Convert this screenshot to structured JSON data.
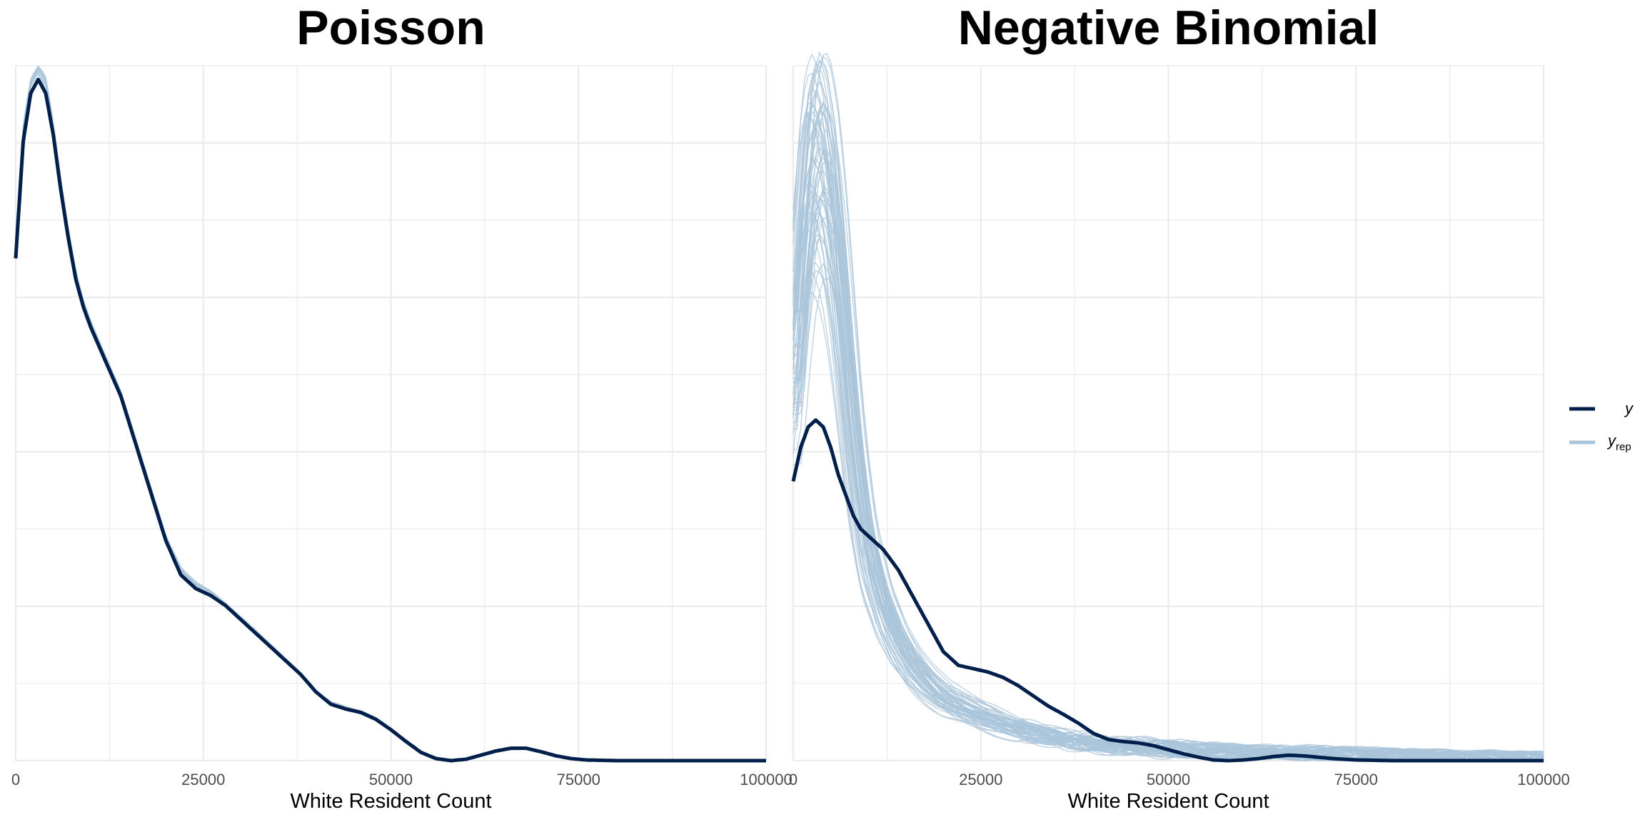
{
  "chart_data": [
    {
      "type": "line",
      "title": "Poisson",
      "xlabel": "White Resident Count",
      "ylabel": "",
      "xlim": [
        0,
        100000
      ],
      "x_ticks": [
        "0",
        "25000",
        "50000",
        "75000",
        "100000"
      ],
      "y_ticks_visible": false,
      "grid": true,
      "series": [
        {
          "name": "y",
          "color": "#011f4b",
          "points": [
            [
              0,
              0.73
            ],
            [
              1000,
              0.9
            ],
            [
              2000,
              0.97
            ],
            [
              3000,
              0.99
            ],
            [
              4000,
              0.97
            ],
            [
              5000,
              0.91
            ],
            [
              6000,
              0.83
            ],
            [
              7000,
              0.76
            ],
            [
              8000,
              0.7
            ],
            [
              9000,
              0.66
            ],
            [
              10000,
              0.63
            ],
            [
              12000,
              0.58
            ],
            [
              14000,
              0.53
            ],
            [
              16000,
              0.46
            ],
            [
              18000,
              0.39
            ],
            [
              20000,
              0.32
            ],
            [
              22000,
              0.27
            ],
            [
              24000,
              0.25
            ],
            [
              26000,
              0.24
            ],
            [
              28000,
              0.225
            ],
            [
              30000,
              0.205
            ],
            [
              32000,
              0.185
            ],
            [
              34000,
              0.165
            ],
            [
              36000,
              0.145
            ],
            [
              38000,
              0.125
            ],
            [
              40000,
              0.1
            ],
            [
              42000,
              0.082
            ],
            [
              44000,
              0.075
            ],
            [
              46000,
              0.07
            ],
            [
              48000,
              0.06
            ],
            [
              50000,
              0.045
            ],
            [
              52000,
              0.028
            ],
            [
              54000,
              0.012
            ],
            [
              56000,
              0.003
            ],
            [
              58000,
              0.0
            ],
            [
              60000,
              0.002
            ],
            [
              62000,
              0.008
            ],
            [
              64000,
              0.014
            ],
            [
              66000,
              0.018
            ],
            [
              68000,
              0.018
            ],
            [
              70000,
              0.013
            ],
            [
              72000,
              0.007
            ],
            [
              74000,
              0.003
            ],
            [
              76000,
              0.001
            ],
            [
              80000,
              0.0
            ],
            [
              100000,
              0.0
            ]
          ]
        },
        {
          "name": "yrep",
          "color": "#a9c4da",
          "points": [
            [
              0,
              0.74
            ],
            [
              1000,
              0.91
            ],
            [
              2000,
              0.98
            ],
            [
              3000,
              1.0
            ],
            [
              4000,
              0.98
            ],
            [
              5000,
              0.91
            ],
            [
              6000,
              0.83
            ],
            [
              7000,
              0.76
            ],
            [
              8000,
              0.7
            ],
            [
              9000,
              0.66
            ],
            [
              10000,
              0.63
            ],
            [
              12000,
              0.58
            ],
            [
              14000,
              0.53
            ],
            [
              16000,
              0.46
            ],
            [
              18000,
              0.39
            ],
            [
              20000,
              0.32
            ],
            [
              22000,
              0.275
            ],
            [
              24000,
              0.255
            ],
            [
              26000,
              0.243
            ],
            [
              28000,
              0.225
            ],
            [
              30000,
              0.205
            ],
            [
              32000,
              0.185
            ],
            [
              34000,
              0.165
            ],
            [
              36000,
              0.145
            ],
            [
              38000,
              0.125
            ],
            [
              40000,
              0.1
            ],
            [
              42000,
              0.083
            ],
            [
              44000,
              0.076
            ],
            [
              46000,
              0.07
            ],
            [
              48000,
              0.06
            ],
            [
              50000,
              0.045
            ],
            [
              52000,
              0.028
            ],
            [
              54000,
              0.012
            ],
            [
              56000,
              0.003
            ],
            [
              58000,
              0.0
            ],
            [
              60000,
              0.002
            ],
            [
              62000,
              0.008
            ],
            [
              64000,
              0.014
            ],
            [
              66000,
              0.018
            ],
            [
              68000,
              0.018
            ],
            [
              70000,
              0.013
            ],
            [
              72000,
              0.007
            ],
            [
              74000,
              0.003
            ],
            [
              76000,
              0.001
            ],
            [
              80000,
              0.0
            ],
            [
              100000,
              0.0
            ]
          ]
        }
      ]
    },
    {
      "type": "line",
      "title": "Negative Binomial",
      "xlabel": "White Resident Count",
      "ylabel": "",
      "xlim": [
        0,
        100000
      ],
      "x_ticks": [
        "0",
        "25000",
        "50000",
        "75000",
        "100000"
      ],
      "y_ticks_visible": false,
      "grid": true,
      "series": [
        {
          "name": "y",
          "color": "#011f4b",
          "points": [
            [
              0,
              0.41
            ],
            [
              1000,
              0.46
            ],
            [
              2000,
              0.49
            ],
            [
              3000,
              0.5
            ],
            [
              4000,
              0.49
            ],
            [
              5000,
              0.46
            ],
            [
              6000,
              0.42
            ],
            [
              7000,
              0.39
            ],
            [
              8000,
              0.36
            ],
            [
              9000,
              0.34
            ],
            [
              10000,
              0.33
            ],
            [
              12000,
              0.31
            ],
            [
              14000,
              0.28
            ],
            [
              16000,
              0.24
            ],
            [
              18000,
              0.2
            ],
            [
              20000,
              0.16
            ],
            [
              22000,
              0.14
            ],
            [
              24000,
              0.135
            ],
            [
              26000,
              0.13
            ],
            [
              28000,
              0.122
            ],
            [
              30000,
              0.11
            ],
            [
              32000,
              0.095
            ],
            [
              34000,
              0.08
            ],
            [
              36000,
              0.068
            ],
            [
              38000,
              0.055
            ],
            [
              40000,
              0.04
            ],
            [
              42000,
              0.031
            ],
            [
              44000,
              0.028
            ],
            [
              46000,
              0.026
            ],
            [
              48000,
              0.022
            ],
            [
              50000,
              0.016
            ],
            [
              52000,
              0.01
            ],
            [
              54000,
              0.005
            ],
            [
              56000,
              0.001
            ],
            [
              58000,
              0.0
            ],
            [
              60000,
              0.001
            ],
            [
              62000,
              0.003
            ],
            [
              64000,
              0.006
            ],
            [
              66000,
              0.008
            ],
            [
              68000,
              0.007
            ],
            [
              70000,
              0.005
            ],
            [
              72000,
              0.003
            ],
            [
              75000,
              0.001
            ],
            [
              80000,
              0.0
            ],
            [
              100000,
              0.0
            ]
          ]
        },
        {
          "name": "yrep",
          "color": "#a9c4da",
          "points": [
            [
              0,
              0.55
            ],
            [
              1000,
              0.72
            ],
            [
              2000,
              0.84
            ],
            [
              3000,
              0.88
            ],
            [
              4000,
              0.86
            ],
            [
              5000,
              0.8
            ],
            [
              6000,
              0.7
            ],
            [
              7000,
              0.58
            ],
            [
              8000,
              0.46
            ],
            [
              9000,
              0.37
            ],
            [
              10000,
              0.3
            ],
            [
              12000,
              0.22
            ],
            [
              14000,
              0.17
            ],
            [
              16000,
              0.135
            ],
            [
              18000,
              0.11
            ],
            [
              20000,
              0.09
            ],
            [
              22000,
              0.078
            ],
            [
              24000,
              0.068
            ],
            [
              26000,
              0.06
            ],
            [
              28000,
              0.052
            ],
            [
              30000,
              0.045
            ],
            [
              32000,
              0.04
            ],
            [
              34000,
              0.035
            ],
            [
              36000,
              0.031
            ],
            [
              38000,
              0.028
            ],
            [
              40000,
              0.025
            ],
            [
              44000,
              0.021
            ],
            [
              48000,
              0.018
            ],
            [
              52000,
              0.016
            ],
            [
              56000,
              0.014
            ],
            [
              60000,
              0.013
            ],
            [
              64000,
              0.012
            ],
            [
              68000,
              0.011
            ],
            [
              72000,
              0.01
            ],
            [
              76000,
              0.009
            ],
            [
              80000,
              0.008
            ],
            [
              85000,
              0.007
            ],
            [
              90000,
              0.006
            ],
            [
              95000,
              0.005
            ],
            [
              100000,
              0.004
            ]
          ]
        }
      ]
    }
  ],
  "legend": {
    "position": "right",
    "entries": [
      {
        "label": "y",
        "subscript": "",
        "color": "#011f4b"
      },
      {
        "label": "y",
        "subscript": "rep",
        "color": "#a9c4da"
      }
    ]
  }
}
